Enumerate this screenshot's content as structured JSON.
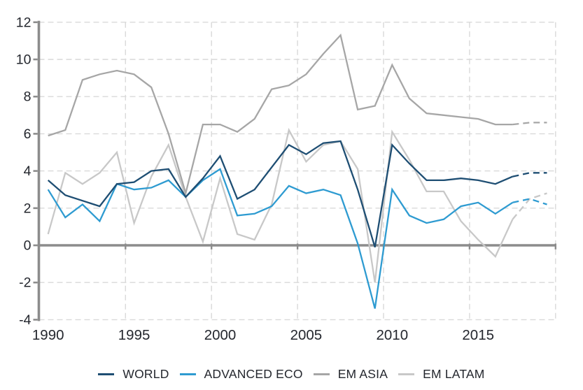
{
  "chart_data": {
    "type": "line",
    "title": "",
    "years": [
      1990,
      1991,
      1992,
      1993,
      1994,
      1995,
      1996,
      1997,
      1998,
      1999,
      2000,
      2001,
      2002,
      2003,
      2004,
      2005,
      2006,
      2007,
      2008,
      2009,
      2010,
      2011,
      2012,
      2013,
      2014,
      2015,
      2016,
      2017,
      2018,
      2019
    ],
    "series": [
      {
        "name": "WORLD",
        "color": "#1e4e73",
        "values": [
          3.5,
          2.7,
          2.4,
          2.1,
          3.3,
          3.4,
          4.0,
          4.1,
          2.6,
          3.6,
          4.8,
          2.5,
          3.0,
          4.2,
          5.4,
          4.9,
          5.5,
          5.6,
          3.0,
          -0.1,
          5.4,
          4.4,
          3.5,
          3.5,
          3.6,
          3.5,
          3.3,
          3.7,
          3.9,
          3.9
        ]
      },
      {
        "name": "ADVANCED ECO",
        "color": "#2e9bd1",
        "values": [
          3.0,
          1.5,
          2.2,
          1.3,
          3.3,
          3.0,
          3.1,
          3.5,
          2.6,
          3.5,
          4.1,
          1.6,
          1.7,
          2.1,
          3.2,
          2.8,
          3.0,
          2.7,
          0.1,
          -3.4,
          3.0,
          1.6,
          1.2,
          1.4,
          2.1,
          2.3,
          1.7,
          2.3,
          2.5,
          2.2
        ]
      },
      {
        "name": "EM ASIA",
        "color": "#a6a6a6",
        "values": [
          5.9,
          6.2,
          8.9,
          9.2,
          9.4,
          9.2,
          8.5,
          6.0,
          2.8,
          6.5,
          6.5,
          6.1,
          6.8,
          8.4,
          8.6,
          9.2,
          10.3,
          11.3,
          7.3,
          7.5,
          9.7,
          7.9,
          7.1,
          7.0,
          6.9,
          6.8,
          6.5,
          6.5,
          6.6,
          6.6
        ]
      },
      {
        "name": "EM LATAM",
        "color": "#c8c8c8",
        "values": [
          0.6,
          3.9,
          3.3,
          3.9,
          5.0,
          1.2,
          3.7,
          5.4,
          2.6,
          0.2,
          3.6,
          0.6,
          0.3,
          2.2,
          6.2,
          4.5,
          5.4,
          5.6,
          4.1,
          -2.0,
          6.1,
          4.6,
          2.9,
          2.9,
          1.3,
          0.3,
          -0.6,
          1.4,
          2.5,
          2.8
        ]
      }
    ],
    "dashed_from_year": 2017,
    "x_tick_years": [
      1990,
      1995,
      2000,
      2005,
      2010,
      2015
    ],
    "x_tick_labels": [
      "1990",
      "1995",
      "2000",
      "2005",
      "2010",
      "2015"
    ],
    "y_ticks": [
      12,
      10,
      8,
      6,
      4,
      2,
      0,
      -2,
      -4
    ],
    "y_tick_labels": [
      "12",
      "10",
      "8",
      "6",
      "4",
      "2",
      "0",
      "-2",
      "-4"
    ],
    "ylim": [
      -4,
      12
    ],
    "grid": true,
    "legend_position": "bottom"
  },
  "legend": {
    "items": [
      "WORLD",
      "ADVANCED ECO",
      "EM ASIA",
      "EM LATAM"
    ]
  },
  "colors": {
    "world": "#1e4e73",
    "advanced_eco": "#2e9bd1",
    "em_asia": "#a6a6a6",
    "em_latam": "#c8c8c8",
    "axis": "#8c8c8c",
    "gridline": "#d9d9d9",
    "label_text": "#24272e",
    "background": "#ffffff"
  }
}
